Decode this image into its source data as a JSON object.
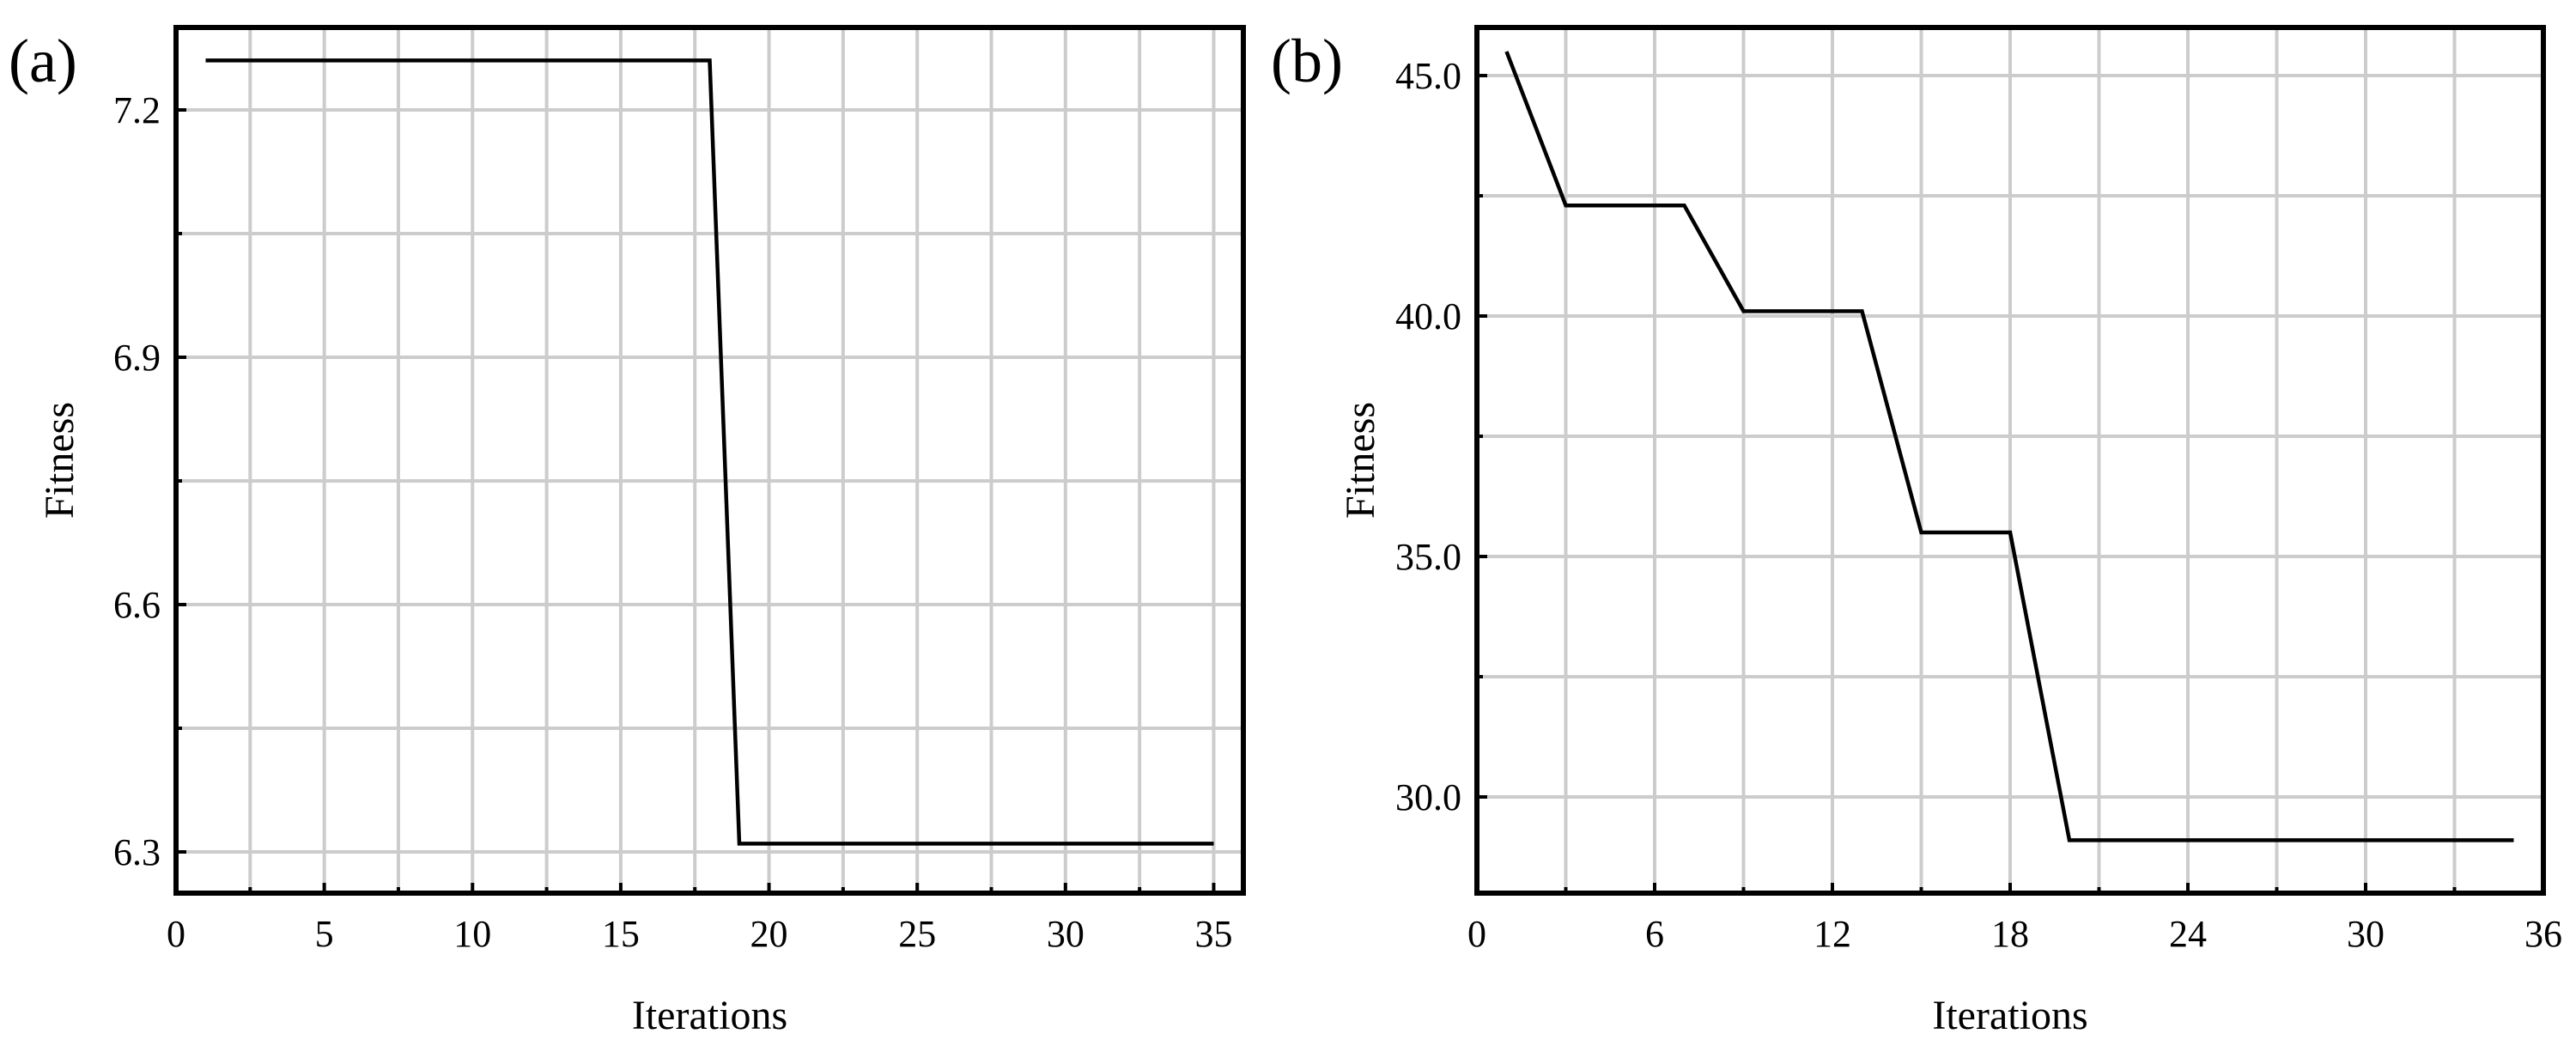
{
  "colors": {
    "line": "#000000",
    "grid": "#cccccc",
    "frame": "#000000",
    "background": "#ffffff"
  },
  "chart_data": [
    {
      "type": "line",
      "panel_label": "(a)",
      "xlabel": "Iterations",
      "ylabel": "Fitness",
      "xlim": [
        0,
        36
      ],
      "ylim": [
        6.25,
        7.3
      ],
      "xticks": [
        0,
        5,
        10,
        15,
        20,
        25,
        30,
        35
      ],
      "xtick_labels": [
        "0",
        "5",
        "10",
        "15",
        "20",
        "25",
        "30",
        "35"
      ],
      "yticks": [
        6.3,
        6.6,
        6.9,
        7.2
      ],
      "ytick_labels": [
        "6.3",
        "6.6",
        "6.9",
        "7.2"
      ],
      "grid": true,
      "series": [
        {
          "x": [
            1,
            18,
            19,
            35
          ],
          "y": [
            7.26,
            7.26,
            6.31,
            6.31
          ]
        }
      ]
    },
    {
      "type": "line",
      "panel_label": "(b)",
      "xlabel": "Iterations",
      "ylabel": "Fitness",
      "xlim": [
        0,
        36
      ],
      "ylim": [
        28,
        46
      ],
      "xticks": [
        0,
        6,
        12,
        18,
        24,
        30,
        36
      ],
      "xtick_labels": [
        "0",
        "6",
        "12",
        "18",
        "24",
        "30",
        "36"
      ],
      "yticks": [
        30,
        35,
        40,
        45
      ],
      "ytick_labels": [
        "30.0",
        "35.0",
        "40.0",
        "45.0"
      ],
      "grid": true,
      "series": [
        {
          "x": [
            1,
            3,
            7,
            9,
            13,
            15,
            18,
            20,
            35
          ],
          "y": [
            45.5,
            42.3,
            42.3,
            40.1,
            40.1,
            35.5,
            35.5,
            29.1,
            29.1
          ]
        }
      ]
    }
  ]
}
